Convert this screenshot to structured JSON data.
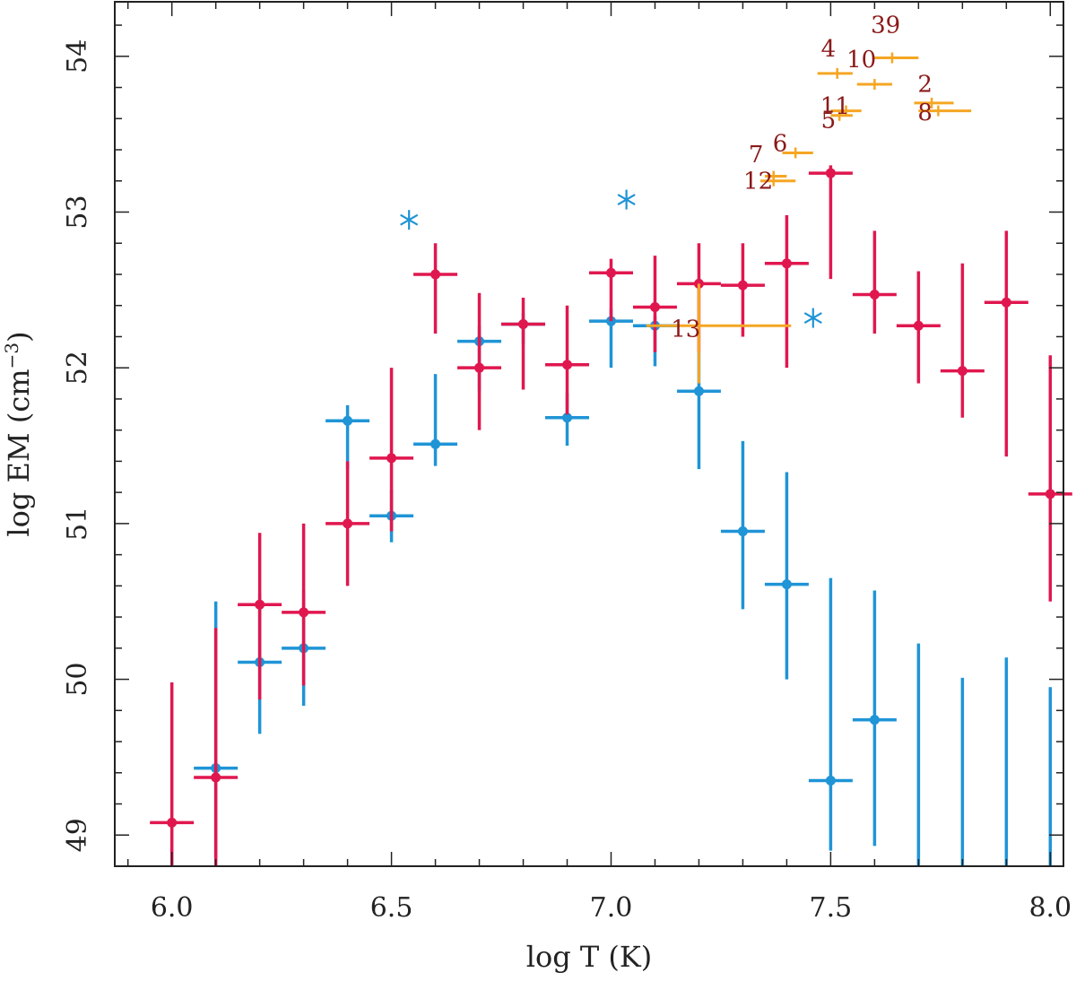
{
  "chart_data": {
    "type": "scatter",
    "title": "",
    "xlabel": "log T (K)",
    "ylabel_main": "log EM (cm",
    "ylabel_sup": "−3",
    "ylabel_close": ")",
    "xlim": [
      5.87,
      8.03
    ],
    "ylim": [
      48.8,
      54.35
    ],
    "xticks": [
      6.0,
      6.5,
      7.0,
      7.5,
      8.0
    ],
    "xtick_labels": [
      "6.0",
      "6.5",
      "7.0",
      "7.5",
      "8.0"
    ],
    "yticks": [
      49,
      50,
      51,
      52,
      53,
      54
    ],
    "ytick_labels": [
      "49",
      "50",
      "51",
      "52",
      "53",
      "54"
    ],
    "colors": {
      "red": "#e0174f",
      "blue": "#1f94d6",
      "orange": "#f5a623",
      "annotation": "#8b1a1a"
    },
    "series": [
      {
        "name": "blue",
        "color": "#1f94d6",
        "points": [
          {
            "x": 6.1,
            "y": 49.43,
            "yerr_lo": 48.85,
            "yerr_hi": 50.5,
            "xerr": 0.05
          },
          {
            "x": 6.2,
            "y": 50.11,
            "yerr_lo": 49.65,
            "yerr_hi": 50.55,
            "xerr": 0.05
          },
          {
            "x": 6.3,
            "y": 50.2,
            "yerr_lo": 49.83,
            "yerr_hi": 50.57,
            "xerr": 0.05
          },
          {
            "x": 6.4,
            "y": 51.66,
            "yerr_lo": 51.35,
            "yerr_hi": 51.76,
            "xerr": 0.05
          },
          {
            "x": 6.5,
            "y": 51.05,
            "yerr_lo": 50.88,
            "yerr_hi": 51.22,
            "xerr": 0.05
          },
          {
            "x": 6.6,
            "y": 51.51,
            "yerr_lo": 51.37,
            "yerr_hi": 51.96,
            "xerr": 0.05
          },
          {
            "x": 6.7,
            "y": 52.17,
            "yerr_lo": 51.85,
            "yerr_hi": 52.27,
            "xerr": 0.05
          },
          {
            "x": 6.8,
            "y": 52.28,
            "yerr_lo": 52.15,
            "yerr_hi": 52.35,
            "xerr": 0.05
          },
          {
            "x": 6.9,
            "y": 51.68,
            "yerr_lo": 51.5,
            "yerr_hi": 51.84,
            "xerr": 0.05
          },
          {
            "x": 7.0,
            "y": 52.3,
            "yerr_lo": 52.0,
            "yerr_hi": 52.38,
            "xerr": 0.05
          },
          {
            "x": 7.1,
            "y": 52.27,
            "yerr_lo": 52.01,
            "yerr_hi": 52.33,
            "xerr": 0.05
          },
          {
            "x": 7.2,
            "y": 51.85,
            "yerr_lo": 51.35,
            "yerr_hi": 52.1,
            "xerr": 0.05
          },
          {
            "x": 7.3,
            "y": 50.95,
            "yerr_lo": 50.45,
            "yerr_hi": 51.53,
            "xerr": 0.05
          },
          {
            "x": 7.4,
            "y": 50.61,
            "yerr_lo": 50.0,
            "yerr_hi": 51.33,
            "xerr": 0.05
          },
          {
            "x": 7.5,
            "y": 49.35,
            "yerr_lo": 48.9,
            "yerr_hi": 50.65,
            "xerr": 0.05
          },
          {
            "x": 7.6,
            "y": 49.74,
            "yerr_lo": 48.93,
            "yerr_hi": 50.57,
            "xerr": 0.05
          },
          {
            "x": 7.7,
            "y": null,
            "yerr_lo": 48.8,
            "yerr_hi": 50.23,
            "xerr": 0
          },
          {
            "x": 7.8,
            "y": null,
            "yerr_lo": 48.8,
            "yerr_hi": 50.01,
            "xerr": 0
          },
          {
            "x": 7.9,
            "y": null,
            "yerr_lo": 48.8,
            "yerr_hi": 50.14,
            "xerr": 0
          },
          {
            "x": 8.0,
            "y": null,
            "yerr_lo": 48.8,
            "yerr_hi": 49.95,
            "xerr": 0
          }
        ]
      },
      {
        "name": "red",
        "color": "#e0174f",
        "points": [
          {
            "x": 6.0,
            "y": 49.08,
            "yerr_lo": 48.8,
            "yerr_hi": 49.98,
            "xerr": 0.05
          },
          {
            "x": 6.1,
            "y": 49.37,
            "yerr_lo": 48.8,
            "yerr_hi": 50.33,
            "xerr": 0.05
          },
          {
            "x": 6.2,
            "y": 50.48,
            "yerr_lo": 49.87,
            "yerr_hi": 50.94,
            "xerr": 0.05
          },
          {
            "x": 6.3,
            "y": 50.43,
            "yerr_lo": 49.96,
            "yerr_hi": 51.0,
            "xerr": 0.05
          },
          {
            "x": 6.4,
            "y": 51.0,
            "yerr_lo": 50.6,
            "yerr_hi": 51.4,
            "xerr": 0.05
          },
          {
            "x": 6.5,
            "y": 51.42,
            "yerr_lo": 50.95,
            "yerr_hi": 52.0,
            "xerr": 0.05
          },
          {
            "x": 6.6,
            "y": 52.6,
            "yerr_lo": 52.22,
            "yerr_hi": 52.8,
            "xerr": 0.05
          },
          {
            "x": 6.7,
            "y": 52.0,
            "yerr_lo": 51.6,
            "yerr_hi": 52.48,
            "xerr": 0.05
          },
          {
            "x": 6.8,
            "y": 52.28,
            "yerr_lo": 51.86,
            "yerr_hi": 52.45,
            "xerr": 0.05
          },
          {
            "x": 6.9,
            "y": 52.02,
            "yerr_lo": 51.7,
            "yerr_hi": 52.4,
            "xerr": 0.05
          },
          {
            "x": 7.0,
            "y": 52.61,
            "yerr_lo": 52.3,
            "yerr_hi": 52.7,
            "xerr": 0.05
          },
          {
            "x": 7.1,
            "y": 52.39,
            "yerr_lo": 52.1,
            "yerr_hi": 52.72,
            "xerr": 0.05
          },
          {
            "x": 7.2,
            "y": 52.54,
            "yerr_lo": 52.1,
            "yerr_hi": 52.8,
            "xerr": 0.05
          },
          {
            "x": 7.3,
            "y": 52.53,
            "yerr_lo": 52.2,
            "yerr_hi": 52.8,
            "xerr": 0.05
          },
          {
            "x": 7.4,
            "y": 52.67,
            "yerr_lo": 52.0,
            "yerr_hi": 52.98,
            "xerr": 0.05
          },
          {
            "x": 7.5,
            "y": 53.25,
            "yerr_lo": 52.57,
            "yerr_hi": 53.3,
            "xerr": 0.05
          },
          {
            "x": 7.6,
            "y": 52.47,
            "yerr_lo": 52.22,
            "yerr_hi": 52.88,
            "xerr": 0.05
          },
          {
            "x": 7.7,
            "y": 52.27,
            "yerr_lo": 51.9,
            "yerr_hi": 52.62,
            "xerr": 0.05
          },
          {
            "x": 7.8,
            "y": 51.98,
            "yerr_lo": 51.68,
            "yerr_hi": 52.67,
            "xerr": 0.05
          },
          {
            "x": 7.9,
            "y": 52.42,
            "yerr_lo": 51.43,
            "yerr_hi": 52.88,
            "xerr": 0.05
          },
          {
            "x": 8.0,
            "y": 51.19,
            "yerr_lo": 50.5,
            "yerr_hi": 52.08,
            "xerr": 0.05
          }
        ]
      }
    ],
    "asterisks": [
      {
        "x": 6.54,
        "y": 52.95
      },
      {
        "x": 7.035,
        "y": 53.08
      },
      {
        "x": 7.46,
        "y": 52.32
      }
    ],
    "orange_points": [
      {
        "label": "39",
        "x": 7.64,
        "y": 53.99,
        "xlo": 7.6,
        "xhi": 7.7
      },
      {
        "label": "4",
        "x": 7.515,
        "y": 53.89,
        "xlo": 7.47,
        "xhi": 7.55
      },
      {
        "label": "10",
        "x": 7.6,
        "y": 53.82,
        "xlo": 7.56,
        "xhi": 7.64
      },
      {
        "label": "2",
        "x": 7.73,
        "y": 53.7,
        "xlo": 7.69,
        "xhi": 7.78
      },
      {
        "label": "8",
        "x": 7.745,
        "y": 53.65,
        "xlo": 7.7,
        "xhi": 7.82
      },
      {
        "label": "11",
        "x": 7.535,
        "y": 53.65,
        "xlo": 7.5,
        "xhi": 7.57
      },
      {
        "label": "5",
        "x": 7.52,
        "y": 53.62,
        "xlo": 7.5,
        "xhi": 7.55
      },
      {
        "label": "6",
        "x": 7.42,
        "y": 53.38,
        "xlo": 7.39,
        "xhi": 7.46
      },
      {
        "label": "7",
        "x": 7.37,
        "y": 53.23,
        "xlo": 7.35,
        "xhi": 7.4
      },
      {
        "label": "12",
        "x": 7.37,
        "y": 53.2,
        "xlo": 7.34,
        "xhi": 7.42
      },
      {
        "label": "13",
        "x": 7.2,
        "y": 52.27,
        "xlo": 7.08,
        "xhi": 7.41,
        "ylo": 51.9,
        "yhi": 52.54
      }
    ],
    "annotations": [
      {
        "text": "39",
        "x": 7.625,
        "y": 54.15
      },
      {
        "text": "4",
        "x": 7.495,
        "y": 54.0
      },
      {
        "text": "10",
        "x": 7.57,
        "y": 53.93
      },
      {
        "text": "2",
        "x": 7.715,
        "y": 53.77
      },
      {
        "text": "8",
        "x": 7.715,
        "y": 53.59
      },
      {
        "text": "11",
        "x": 7.51,
        "y": 53.63
      },
      {
        "text": "5",
        "x": 7.495,
        "y": 53.54
      },
      {
        "text": "6",
        "x": 7.385,
        "y": 53.39
      },
      {
        "text": "7",
        "x": 7.33,
        "y": 53.32
      },
      {
        "text": "12",
        "x": 7.335,
        "y": 53.15
      },
      {
        "text": "13",
        "x": 7.17,
        "y": 52.2
      }
    ]
  }
}
